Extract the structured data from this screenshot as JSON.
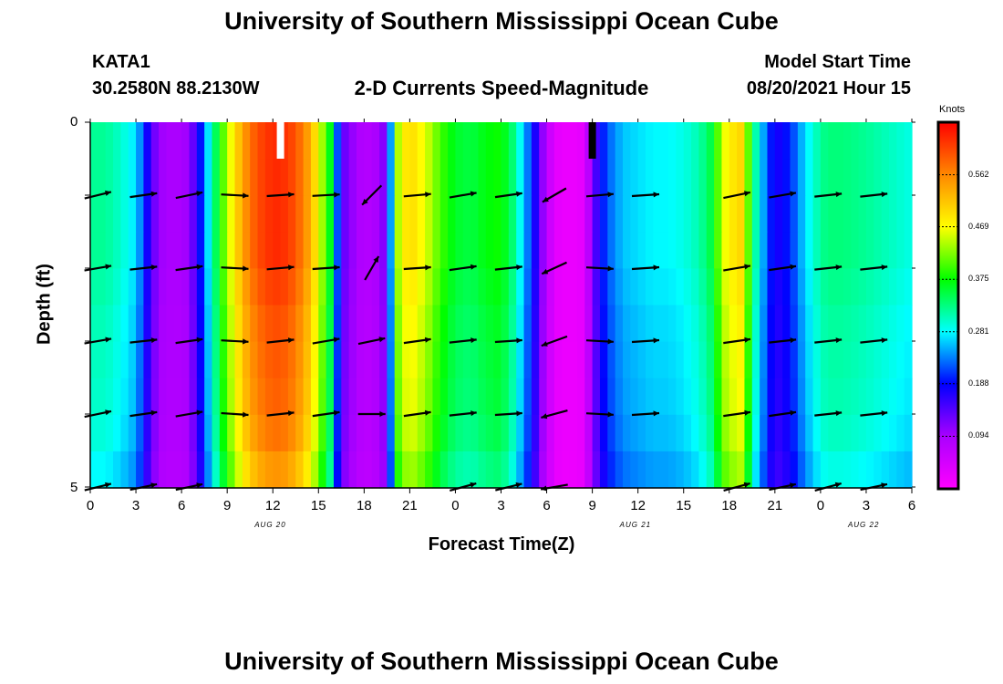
{
  "header": {
    "title_top": "University of Southern Mississippi Ocean Cube",
    "title_bottom": "University of Southern Mississippi Ocean Cube",
    "station_id": "KATA1",
    "station_coords": "30.2580N  88.2130W",
    "model_label": "Model Start Time",
    "model_time": "08/20/2021 Hour 15"
  },
  "chart_data": {
    "type": "heatmap",
    "title": "2-D Currents Speed-Magnitude",
    "xlabel": "Forecast Time(Z)",
    "ylabel": "Depth (ft)",
    "x_ticks": [
      "0",
      "3",
      "6",
      "9",
      "12",
      "15",
      "18",
      "21",
      "0",
      "3",
      "6",
      "9",
      "12",
      "15",
      "18",
      "21",
      "0",
      "3",
      "6"
    ],
    "y_ticks": [
      "0",
      "5"
    ],
    "ylim": [
      0,
      5
    ],
    "date_labels": [
      {
        "text": "AUG 20",
        "tick_index": 4
      },
      {
        "text": "AUG 21",
        "tick_index": 12
      },
      {
        "text": "AUG 22",
        "tick_index": 17
      }
    ],
    "colorbar": {
      "unit": "Knots",
      "min": 0.0,
      "max": 0.656,
      "ticks": [
        "0.562",
        "0.469",
        "0.375",
        "0.281",
        "0.188",
        "0.094"
      ],
      "tick_values": [
        0.562,
        0.469,
        0.375,
        0.281,
        0.188,
        0.094
      ]
    },
    "speed_by_hour": [
      [
        0,
        0.32
      ],
      [
        1,
        0.32
      ],
      [
        2,
        0.3
      ],
      [
        3,
        0.27
      ],
      [
        3.6,
        0.2
      ],
      [
        4,
        0.14
      ],
      [
        4.6,
        0.1
      ],
      [
        5.5,
        0.09
      ],
      [
        6.5,
        0.1
      ],
      [
        7.3,
        0.2
      ],
      [
        7.8,
        0.28
      ],
      [
        8.3,
        0.35
      ],
      [
        9,
        0.44
      ],
      [
        9.8,
        0.52
      ],
      [
        10.5,
        0.58
      ],
      [
        11.5,
        0.62
      ],
      [
        12.5,
        0.63
      ],
      [
        13.5,
        0.6
      ],
      [
        14.5,
        0.53
      ],
      [
        15.2,
        0.44
      ],
      [
        15.8,
        0.36
      ],
      [
        16.3,
        0.2
      ],
      [
        16.8,
        0.12
      ],
      [
        18,
        0.08
      ],
      [
        19.2,
        0.1
      ],
      [
        19.8,
        0.26
      ],
      [
        20.3,
        0.46
      ],
      [
        21,
        0.5
      ],
      [
        22,
        0.46
      ],
      [
        23,
        0.4
      ],
      [
        24,
        0.36
      ],
      [
        25,
        0.35
      ],
      [
        26,
        0.37
      ],
      [
        27,
        0.38
      ],
      [
        27.8,
        0.33
      ],
      [
        28.5,
        0.26
      ],
      [
        29.2,
        0.18
      ],
      [
        29.8,
        0.1
      ],
      [
        30.5,
        0.03
      ],
      [
        31.5,
        0.02
      ],
      [
        32.5,
        0.03
      ],
      [
        33,
        0.12
      ],
      [
        33.5,
        0.18
      ],
      [
        34,
        0.22
      ],
      [
        35,
        0.26
      ],
      [
        36,
        0.27
      ],
      [
        37,
        0.28
      ],
      [
        38,
        0.28
      ],
      [
        39,
        0.29
      ],
      [
        40,
        0.31
      ],
      [
        41,
        0.36
      ],
      [
        41.5,
        0.45
      ],
      [
        42,
        0.48
      ],
      [
        42.8,
        0.5
      ],
      [
        43.3,
        0.4
      ],
      [
        43.8,
        0.3
      ],
      [
        44.5,
        0.22
      ],
      [
        45,
        0.17
      ],
      [
        46,
        0.2
      ],
      [
        47,
        0.27
      ],
      [
        48,
        0.32
      ],
      [
        48.5,
        0.33
      ],
      [
        49.5,
        0.33
      ],
      [
        51,
        0.32
      ],
      [
        53,
        0.3
      ],
      [
        54,
        0.29
      ]
    ],
    "depth_rows": [
      0,
      1,
      2,
      3,
      4,
      5
    ],
    "vectors": {
      "hours": [
        0.5,
        3.5,
        6.5,
        9.5,
        12.5,
        15.5,
        18.5,
        21.5,
        24.5,
        27.5,
        30.5,
        33.5,
        36.5,
        39.5,
        42.5,
        45.5,
        48.5,
        51.5
      ],
      "note": "arrow heading per column and depth row, degrees clockwise from east",
      "angles": [
        [
          null,
          null,
          null,
          null,
          null,
          null,
          null,
          null,
          null,
          null,
          null,
          null,
          null,
          null,
          null,
          null,
          null,
          null
        ],
        [
          -14,
          -8,
          -12,
          3,
          -4,
          -3,
          135,
          -5,
          -10,
          -8,
          150,
          -5,
          -4,
          null,
          -12,
          -10,
          -6,
          -6
        ],
        [
          -10,
          -6,
          -8,
          3,
          -5,
          -4,
          -60,
          -4,
          -8,
          -6,
          155,
          3,
          -4,
          null,
          -10,
          -8,
          -6,
          -6
        ],
        [
          -10,
          -6,
          -8,
          3,
          -6,
          -10,
          -12,
          -8,
          -6,
          -4,
          160,
          3,
          -4,
          null,
          -8,
          -6,
          -6,
          -6
        ],
        [
          -12,
          -8,
          -10,
          4,
          -6,
          -8,
          0,
          -8,
          -6,
          -4,
          165,
          3,
          -4,
          null,
          -8,
          -8,
          -6,
          -6
        ],
        [
          -14,
          -12,
          -12,
          null,
          null,
          null,
          null,
          null,
          -15,
          -14,
          170,
          null,
          null,
          null,
          -15,
          -12,
          -15,
          -12
        ]
      ]
    }
  }
}
